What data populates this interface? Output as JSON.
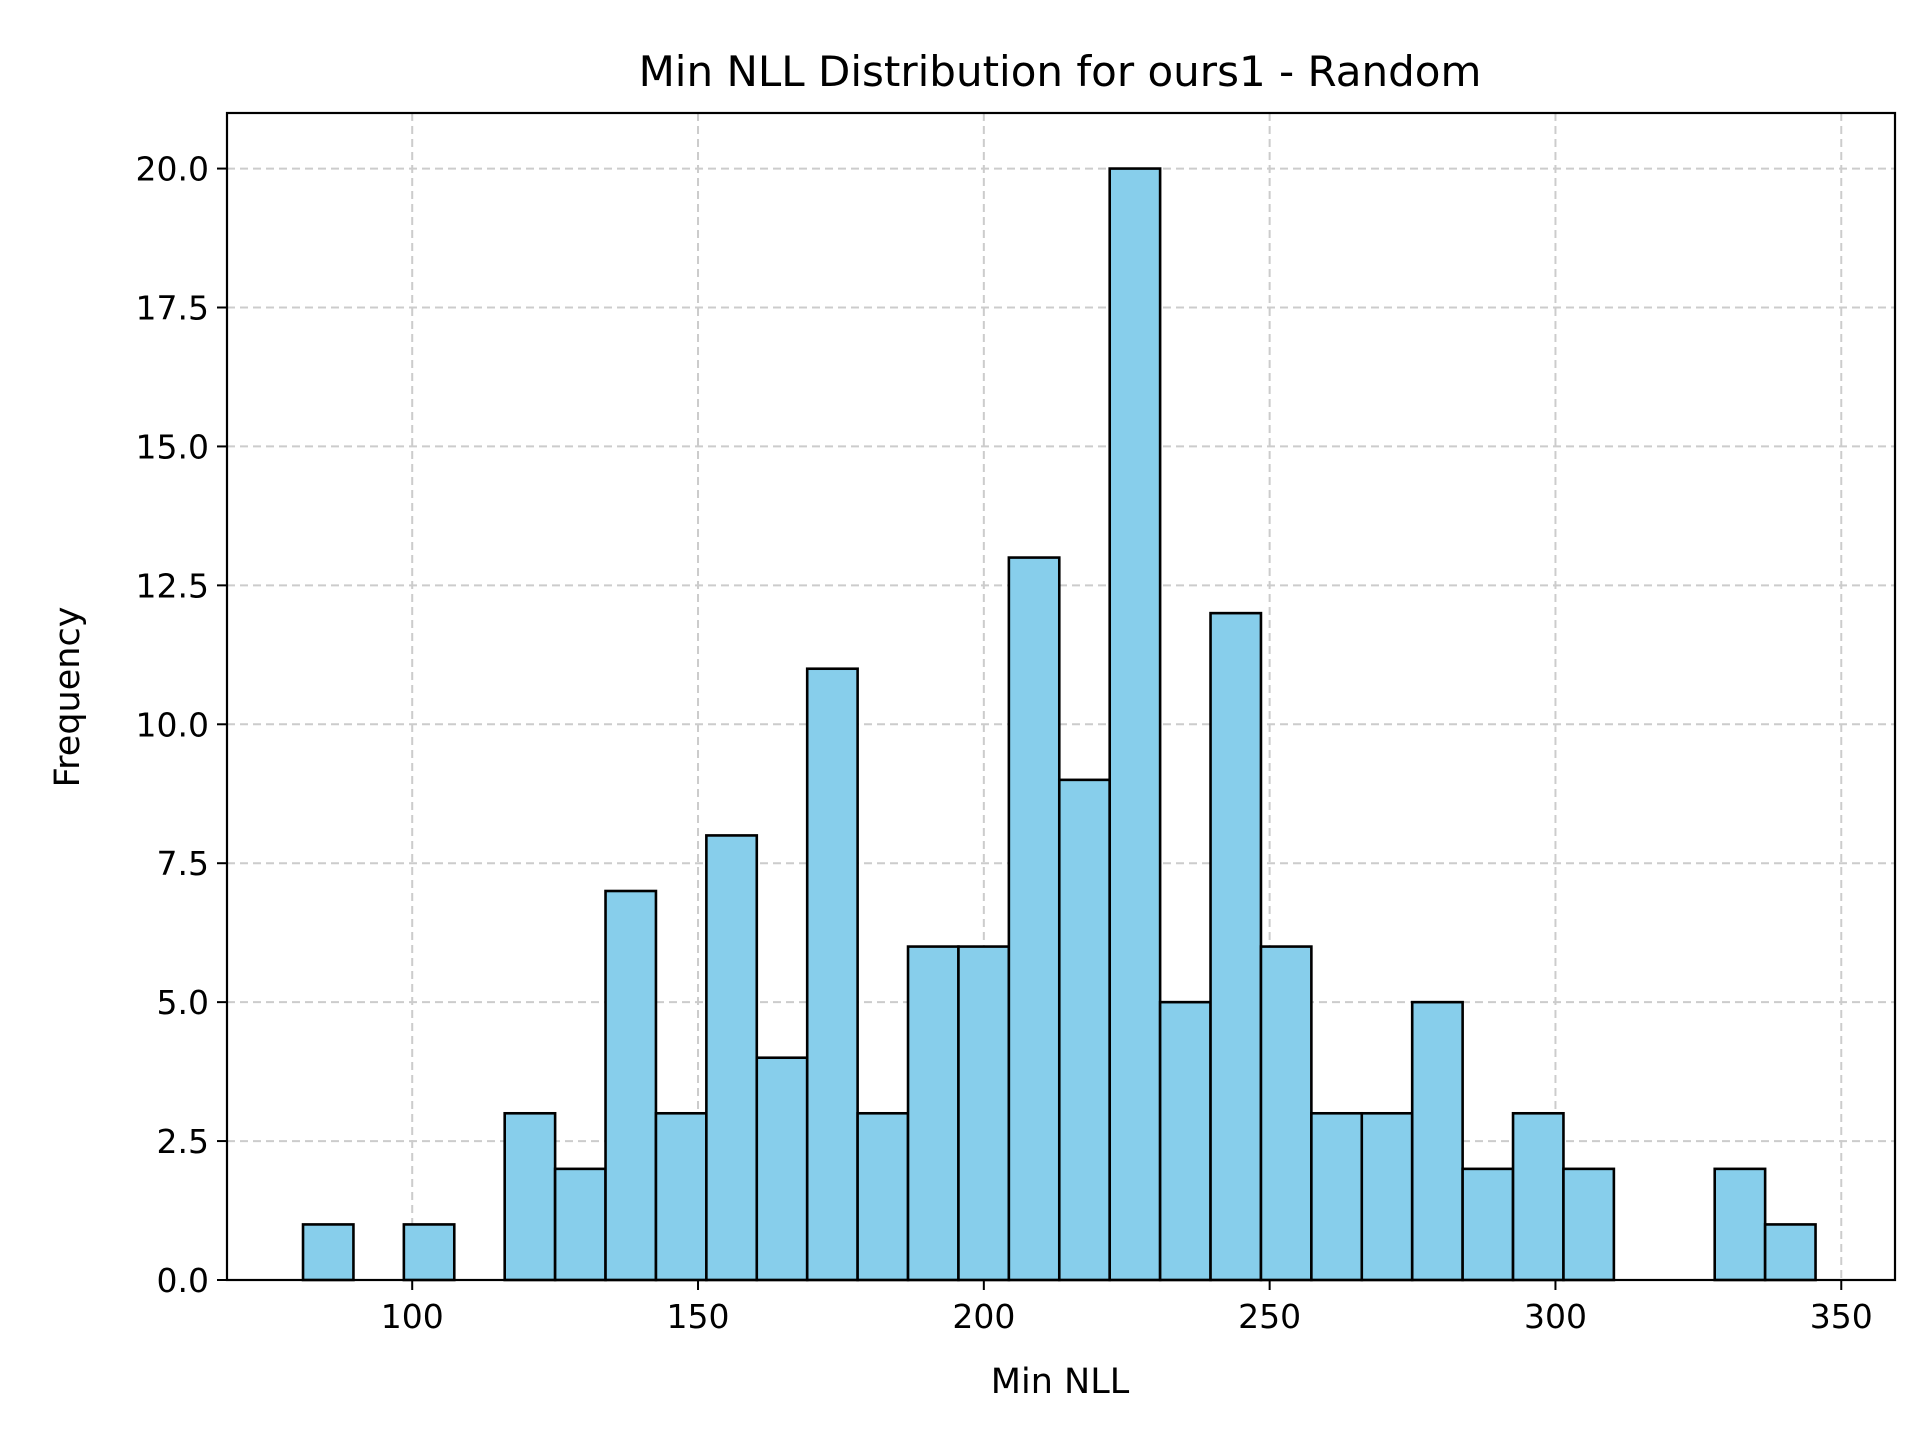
{
  "chart_data": {
    "type": "bar",
    "title": "Min NLL Distribution for ours1 - Random",
    "xlabel": "Min NLL",
    "ylabel": "Frequency",
    "xlim": [
      67.6,
      359.4
    ],
    "ylim": [
      0,
      21
    ],
    "x_ticks": [
      100,
      150,
      200,
      250,
      300,
      350
    ],
    "x_tick_labels": [
      "100",
      "150",
      "200",
      "250",
      "300",
      "350"
    ],
    "y_ticks": [
      0,
      2.5,
      5,
      7.5,
      10,
      12.5,
      15,
      17.5,
      20
    ],
    "y_tick_labels": [
      "0.0",
      "2.5",
      "5.0",
      "7.5",
      "10.0",
      "12.5",
      "15.0",
      "17.5",
      "20.0"
    ],
    "bin_start": 80.9,
    "bin_width": 8.82,
    "values": [
      1,
      0,
      1,
      0,
      3,
      2,
      7,
      3,
      8,
      4,
      11,
      3,
      6,
      6,
      13,
      9,
      20,
      5,
      12,
      6,
      3,
      3,
      5,
      2,
      3,
      2,
      0,
      0,
      2,
      1
    ],
    "grid": true,
    "colors": {
      "bar_fill": "#87ceeb",
      "bar_edge": "#000000",
      "grid": "#cccccc"
    }
  }
}
